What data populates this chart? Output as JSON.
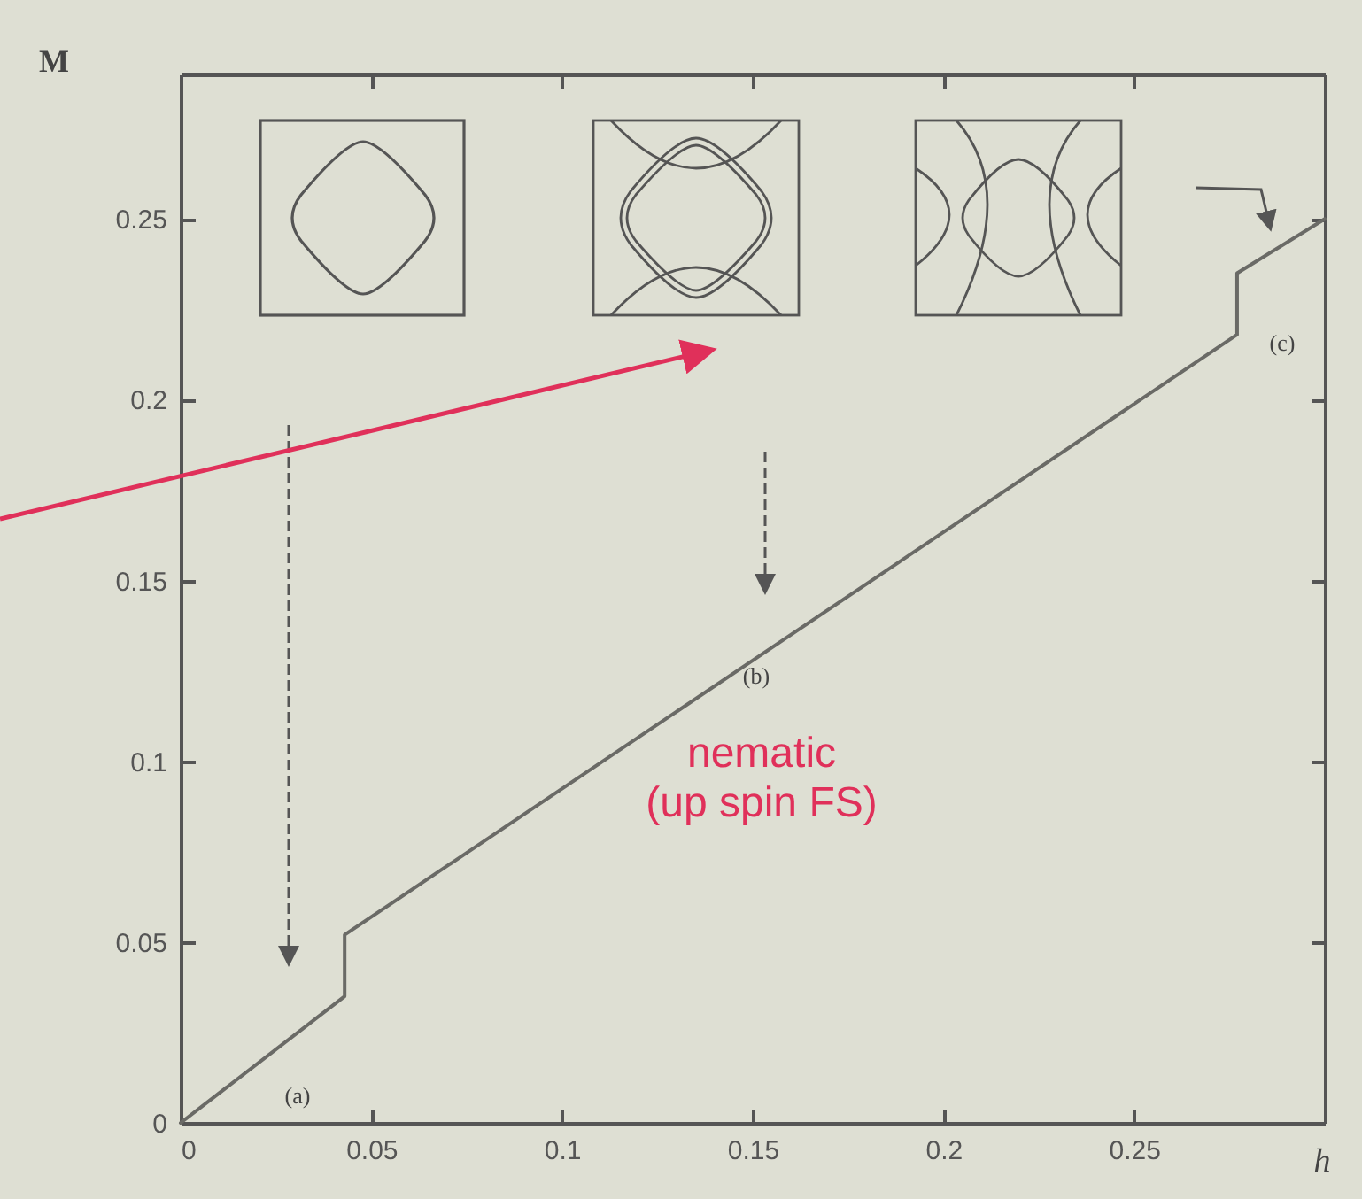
{
  "chart_data": {
    "type": "line",
    "xlabel": "h",
    "ylabel": "M",
    "x": [
      0,
      0.043,
      0.043,
      0.277,
      0.277,
      0.3
    ],
    "series": [
      {
        "color": "#6a6a66",
        "values": [
          0,
          0.035,
          0.052,
          0.218,
          0.235,
          0.25
        ]
      }
    ],
    "xlim": [
      0,
      0.3
    ],
    "ylim": [
      0,
      0.29
    ],
    "xticks": [
      0,
      0.05,
      0.1,
      0.15,
      0.2,
      0.25
    ],
    "yticks": [
      0,
      0.05,
      0.1,
      0.15,
      0.2,
      0.25
    ],
    "grid": false,
    "marker": "none",
    "line_style": "solid",
    "annotations": [
      "(a)",
      "(b)",
      "(c)",
      "nematic\n(up spin FS)"
    ]
  }
}
